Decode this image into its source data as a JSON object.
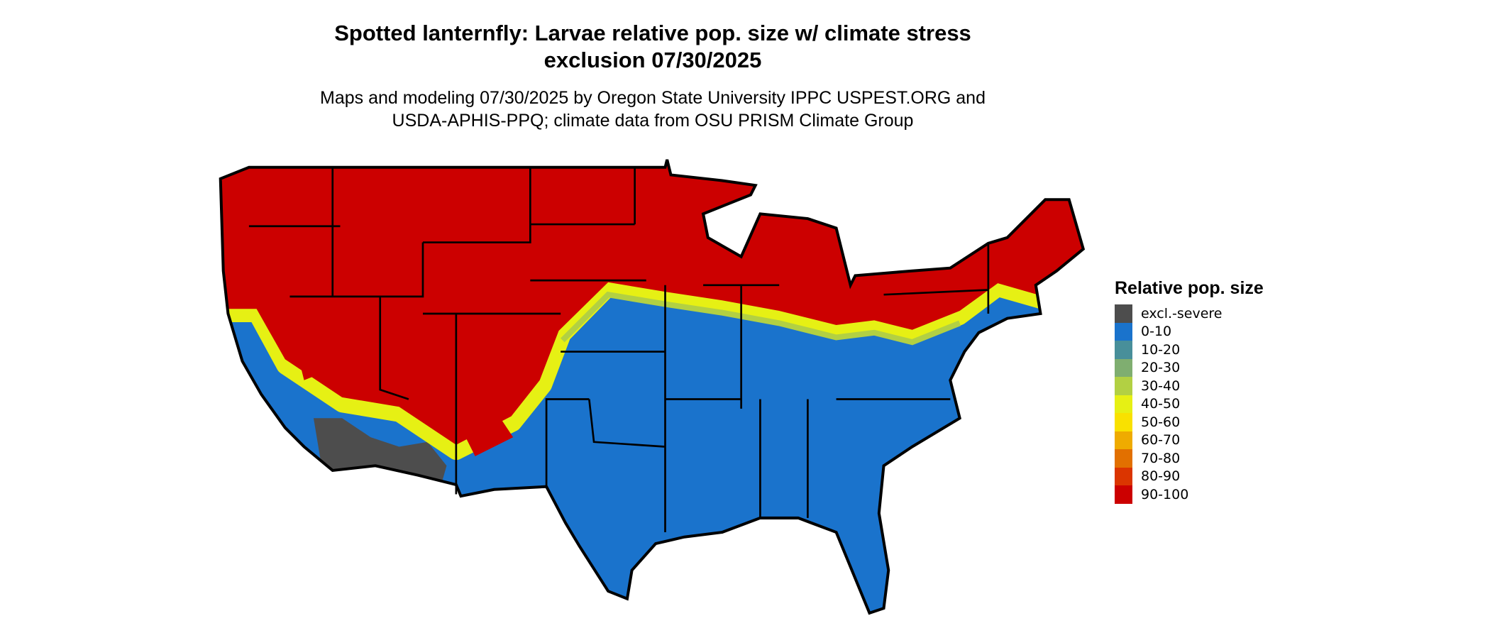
{
  "title_line1": "Spotted lanternfly: Larvae relative pop. size w/ climate stress",
  "title_line2": "exclusion 07/30/2025",
  "subtitle_line1": "Maps and modeling 07/30/2025 by Oregon State University IPPC USPEST.ORG and",
  "subtitle_line2": "USDA-APHIS-PPQ; climate data from OSU PRISM Climate Group",
  "map": {
    "region": "Contiguous United States",
    "dominant_north": "90-100",
    "dominant_south": "0-10",
    "southwest_desert": "excl.-severe"
  },
  "legend": {
    "title": "Relative pop. size",
    "items": [
      {
        "label": "excl.-severe",
        "color": "#4d4d4d"
      },
      {
        "label": "0-10",
        "color": "#1a73cc"
      },
      {
        "label": "10-20",
        "color": "#488f9a"
      },
      {
        "label": "20-30",
        "color": "#7fae70"
      },
      {
        "label": "30-40",
        "color": "#b2d043"
      },
      {
        "label": "40-50",
        "color": "#e6f014"
      },
      {
        "label": "50-60",
        "color": "#f9e100"
      },
      {
        "label": "60-70",
        "color": "#efab00"
      },
      {
        "label": "70-80",
        "color": "#e27000"
      },
      {
        "label": "80-90",
        "color": "#db3500"
      },
      {
        "label": "90-100",
        "color": "#cc0000"
      }
    ]
  }
}
